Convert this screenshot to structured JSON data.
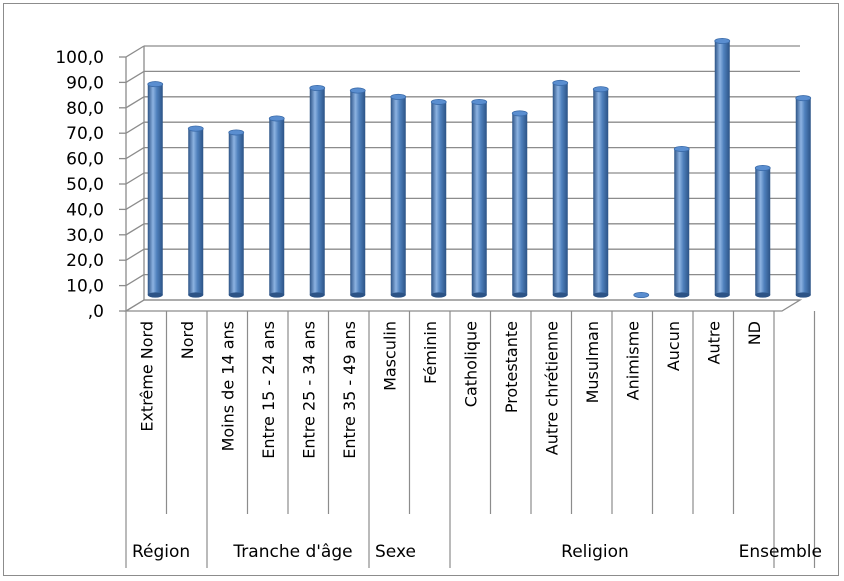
{
  "chart_data": {
    "type": "bar",
    "title": "",
    "xlabel": "",
    "ylabel": "",
    "ylim": [
      0,
      100
    ],
    "y_ticks": [
      ",0",
      "10,0",
      "20,0",
      "30,0",
      "40,0",
      "50,0",
      "60,0",
      "70,0",
      "80,0",
      "90,0",
      "100,0"
    ],
    "categories": [
      "Extrême Nord",
      "Nord",
      "Moins de 14 ans",
      "Entre 15 - 24 ans",
      "Entre 25 - 34 ans",
      "Entre 35 - 49 ans",
      "Masculin",
      "Féminin",
      "Catholique",
      "Protestante",
      "Autre chrétienne",
      "Musulman",
      "Animisme",
      "Aucun",
      "Autre",
      "ND",
      ""
    ],
    "values": [
      83,
      65.5,
      64,
      69.5,
      81.5,
      80.5,
      78,
      76,
      76,
      71.5,
      83.5,
      81,
      0,
      57.5,
      100,
      50,
      77.5
    ],
    "groups": [
      {
        "label": "Région",
        "count": 2
      },
      {
        "label": "Tranche d'âge",
        "count": 4
      },
      {
        "label": "Sexe",
        "count": 2
      },
      {
        "label": "Religion",
        "count": 8
      },
      {
        "label": "Ensemble",
        "count": 1
      }
    ],
    "grid": true,
    "legend": "none",
    "colors": {
      "bar": "#4a7ebb",
      "bar_dark": "#2c5386",
      "bar_light": "#8db3e2",
      "grid": "#8c8c8c"
    }
  }
}
